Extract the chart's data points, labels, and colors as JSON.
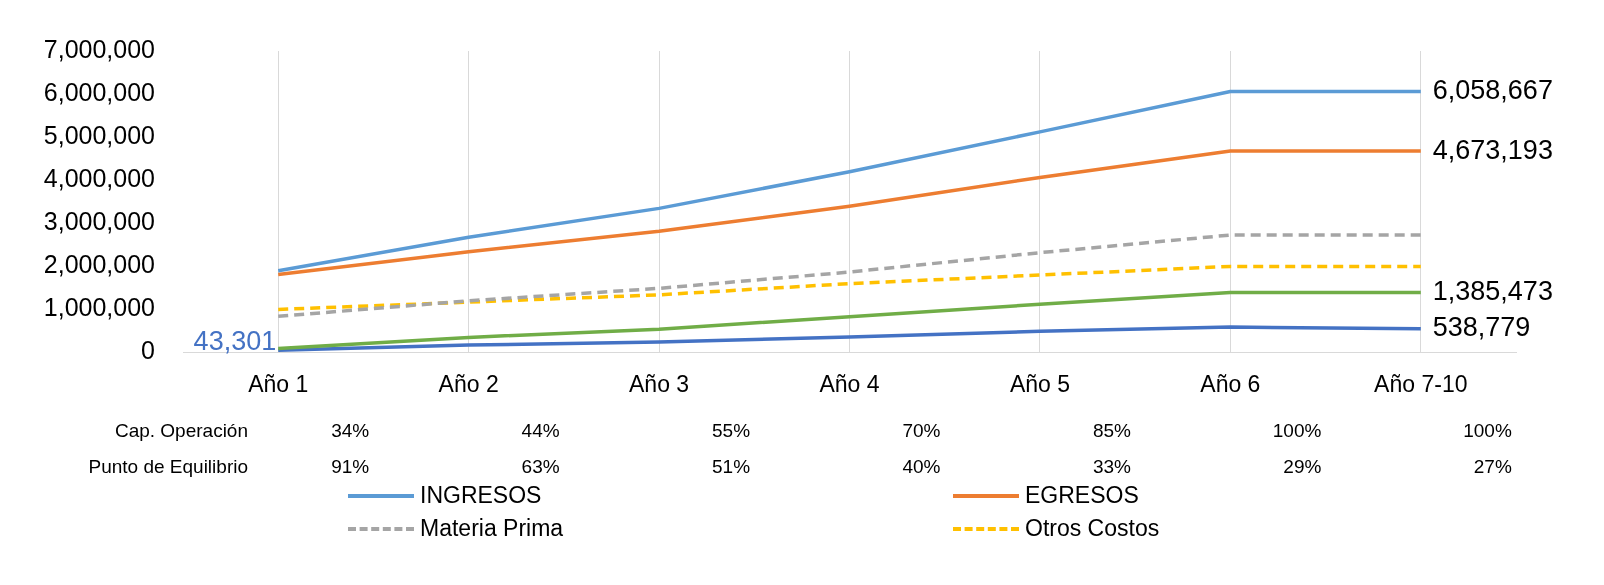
{
  "chart_data": {
    "type": "line",
    "categories": [
      "Año 1",
      "Año 2",
      "Año 3",
      "Año 4",
      "Año 5",
      "Año 6",
      "Año 7-10"
    ],
    "series": [
      {
        "name": "INGRESOS",
        "color": "#5b9bd5",
        "values": [
          1890000,
          2670000,
          3340000,
          4190000,
          5120000,
          6058667,
          6058667
        ],
        "value_labels": [
          null,
          null,
          null,
          null,
          null,
          null,
          "6,058,667"
        ]
      },
      {
        "name": "EGRESOS",
        "color": "#ed7d31",
        "values": [
          1800000,
          2330000,
          2810000,
          3390000,
          4060000,
          4673193,
          4673193
        ],
        "value_labels": [
          null,
          null,
          null,
          null,
          null,
          null,
          "4,673,193"
        ]
      },
      {
        "name": "Materia Prima",
        "color": "#a5a5a5",
        "line_style": "dashed",
        "values": [
          830000,
          1190000,
          1480000,
          1860000,
          2310000,
          2720000,
          2720000
        ]
      },
      {
        "name": "Otros Costos",
        "color": "#ffc000",
        "line_style": "dashed",
        "values": [
          990000,
          1160000,
          1330000,
          1590000,
          1790000,
          1990000,
          1990000
        ]
      },
      {
        "color": "#70ad47",
        "values": [
          80000,
          340000,
          530000,
          820000,
          1110000,
          1385473,
          1385473
        ],
        "value_labels": [
          null,
          null,
          null,
          null,
          null,
          null,
          "1,385,473"
        ]
      },
      {
        "color": "#4472c4",
        "values": [
          43301,
          160000,
          230000,
          350000,
          480000,
          580000,
          538779
        ],
        "value_labels": [
          "43,301",
          null,
          null,
          null,
          null,
          null,
          "538,779"
        ]
      }
    ],
    "ylim": [
      0,
      7000000
    ],
    "yticks": [
      0,
      {
        "value": 1000000,
        "label": "1,000,000"
      },
      {
        "value": 2000000,
        "label": "2,000,000"
      },
      {
        "value": 3000000,
        "label": "3,000,000"
      },
      {
        "value": 4000000,
        "label": "4,000,000"
      },
      {
        "value": 5000000,
        "label": "5,000,000"
      },
      {
        "value": 6000000,
        "label": "6,000,000"
      },
      {
        "value": 7000000,
        "label": "7,000,000"
      }
    ],
    "grid": "x",
    "legend": "bottom",
    "line_style": "solid",
    "marker": "none",
    "annotations": [
      "Cap. Operación",
      "34%",
      "44%",
      "55%",
      "70%",
      "85%",
      "100%",
      "100%",
      "Punto de Equilibrio",
      "91%",
      "63%",
      "51%",
      "40%",
      "33%",
      "29%",
      "27%"
    ]
  }
}
